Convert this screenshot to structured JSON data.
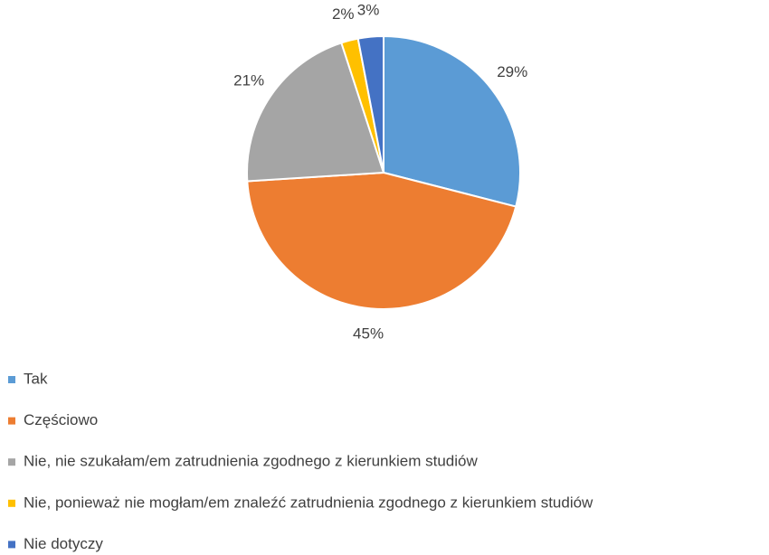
{
  "chart_data": {
    "type": "pie",
    "categories": [
      "Tak",
      "Częściowo",
      "Nie, nie szukałam/em zatrudnienia zgodnego z kierunkiem studiów",
      "Nie, ponieważ nie mogłam/em znaleźć zatrudnienia zgodnego z kierunkiem studiów",
      "Nie dotyczy"
    ],
    "values": [
      29,
      45,
      21,
      2,
      3
    ],
    "value_labels": [
      "29%",
      "45%",
      "21%",
      "2%",
      "3%"
    ],
    "colors": [
      "#5b9bd5",
      "#ed7d31",
      "#a5a5a5",
      "#ffc000",
      "#4472c4"
    ],
    "legend": "bottom-left"
  }
}
